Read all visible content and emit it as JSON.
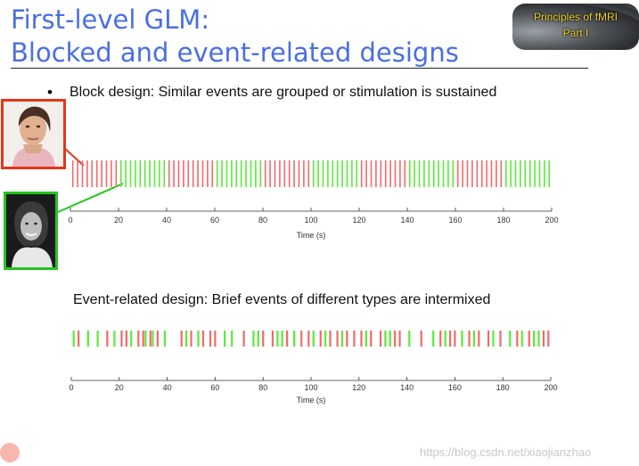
{
  "slide": {
    "title_line1": "First-level GLM:",
    "title_line2": "Blocked and event-related designs",
    "badge_line1": "Principles of fMRI",
    "badge_line2": "Part I",
    "bullet_symbol": "•",
    "block_heading": "Block design: Similar events are grouped or stimulation is sustained",
    "event_heading": "Event-related design: Brief events of different types are intermixed",
    "watermark": "https://blog.csdn.net/xiaojianzhao"
  },
  "colors": {
    "title": "#4a6fe3",
    "condition_a": "#f36a6a",
    "condition_b": "#5bea3a",
    "frame_red": "#e53517",
    "frame_green": "#22c61e",
    "badge_text": "#f4d630"
  },
  "chart_data": [
    {
      "type": "event-raster",
      "name": "block-design",
      "xlabel": "Time (s)",
      "xlim": [
        0,
        200
      ],
      "xticks": [
        "0",
        "20",
        "40",
        "60",
        "80",
        "100",
        "120",
        "140",
        "160",
        "180",
        "200"
      ],
      "series": [
        {
          "name": "condition-a",
          "color": "#f36a6a",
          "blocks": [
            [
              0,
              20
            ],
            [
              40,
              60
            ],
            [
              80,
              100
            ],
            [
              120,
              140
            ],
            [
              160,
              180
            ]
          ]
        },
        {
          "name": "condition-b",
          "color": "#5bea3a",
          "blocks": [
            [
              20,
              40
            ],
            [
              60,
              80
            ],
            [
              100,
              120
            ],
            [
              140,
              160
            ],
            [
              180,
              200
            ]
          ]
        }
      ],
      "event_spacing_s": 2
    },
    {
      "type": "event-raster",
      "name": "event-related-design",
      "xlabel": "Time (s)",
      "xlim": [
        0,
        200
      ],
      "xticks": [
        "0",
        "20",
        "40",
        "60",
        "80",
        "100",
        "120",
        "140",
        "160",
        "180",
        "200"
      ],
      "series": [
        {
          "name": "condition-a",
          "color": "#f36a6a",
          "times": [
            3,
            15,
            21,
            23,
            28,
            30,
            33,
            36,
            46,
            50,
            55,
            58,
            60,
            72,
            80,
            84,
            90,
            96,
            99,
            104,
            108,
            111,
            115,
            118,
            121,
            125,
            129,
            135,
            137,
            146,
            154,
            158,
            160,
            166,
            170,
            174,
            179,
            186,
            191,
            197,
            199
          ]
        },
        {
          "name": "condition-b",
          "color": "#5bea3a",
          "times": [
            1,
            7,
            11,
            18,
            25,
            31,
            34,
            39,
            48,
            53,
            64,
            67,
            76,
            78,
            86,
            88,
            93,
            101,
            106,
            113,
            123,
            131,
            133,
            141,
            151,
            156,
            163,
            168,
            176,
            183,
            188,
            193,
            195
          ]
        }
      ]
    }
  ]
}
